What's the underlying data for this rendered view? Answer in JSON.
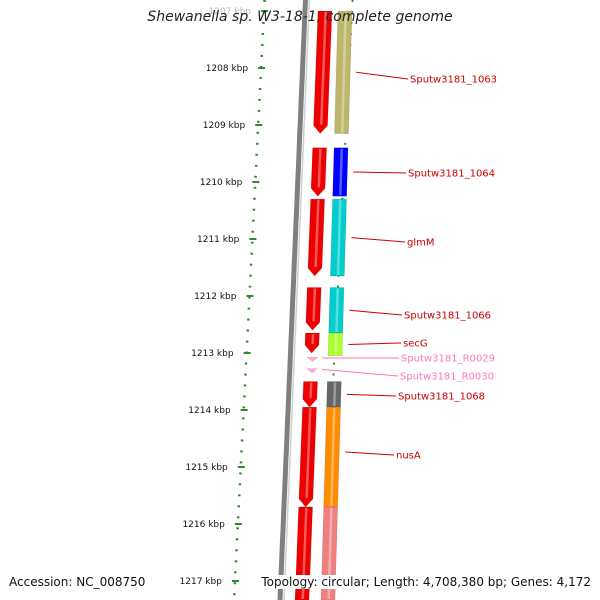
{
  "title": "Shewanella sp. W3-18-1, complete genome",
  "accession_text": "Accession: NC_008750",
  "topology_text": "Topology: circular; Length: 4,708,380 bp; Genes: 4,172",
  "ruler_ticks": [
    {
      "label": "1207 kbp",
      "faded": true
    },
    {
      "label": "1208 kbp"
    },
    {
      "label": "1209 kbp"
    },
    {
      "label": "1210 kbp"
    },
    {
      "label": "1211 kbp"
    },
    {
      "label": "1212 kbp"
    },
    {
      "label": "1213 kbp"
    },
    {
      "label": "1214 kbp"
    },
    {
      "label": "1215 kbp"
    },
    {
      "label": "1216 kbp"
    },
    {
      "label": "1217 kbp"
    }
  ],
  "genes": [
    {
      "label": "Sputw3181_1063",
      "type": "cds",
      "color": "#bdb76b",
      "start_kbp": 1207.0,
      "end_kbp": 1209.15,
      "arrow": false
    },
    {
      "label": "Sputw3181_1064",
      "type": "cds",
      "color": "#0000ff",
      "start_kbp": 1209.4,
      "end_kbp": 1210.25,
      "arrow": true
    },
    {
      "label": "glmM",
      "type": "cds",
      "color": "#00cdcd",
      "start_kbp": 1210.3,
      "end_kbp": 1211.65,
      "arrow": true
    },
    {
      "label": "Sputw3181_1066",
      "type": "cds",
      "color": "#00cdcd",
      "start_kbp": 1211.85,
      "end_kbp": 1212.65,
      "arrow": true
    },
    {
      "label": "secG",
      "type": "cds",
      "color": "#adff2f",
      "start_kbp": 1212.65,
      "end_kbp": 1213.05,
      "arrow": true
    },
    {
      "label": "Sputw3181_R0029",
      "type": "trna",
      "color": "#ff69b4",
      "start_kbp": 1213.0,
      "end_kbp": 1213.1,
      "arrow": true
    },
    {
      "label": "Sputw3181_R0030",
      "type": "trna",
      "color": "#ff69b4",
      "start_kbp": 1213.2,
      "end_kbp": 1213.3,
      "arrow": true
    },
    {
      "label": "Sputw3181_1068",
      "type": "cds",
      "color": "#666666",
      "start_kbp": 1213.5,
      "end_kbp": 1213.95,
      "arrow": true
    },
    {
      "label": "nusA",
      "type": "cds",
      "color": "#ff8c00",
      "start_kbp": 1213.95,
      "end_kbp": 1215.7,
      "arrow": true
    },
    {
      "label": "",
      "type": "cds",
      "color": "#f08080",
      "start_kbp": 1215.7,
      "end_kbp": 1217.5,
      "arrow": false
    }
  ],
  "colors": {
    "backbone": "#808080",
    "cds_forward": "#ee0000",
    "label_cds": "#cc0000",
    "label_trna": "#ff77bb",
    "ruler": "#2e8b2e"
  }
}
